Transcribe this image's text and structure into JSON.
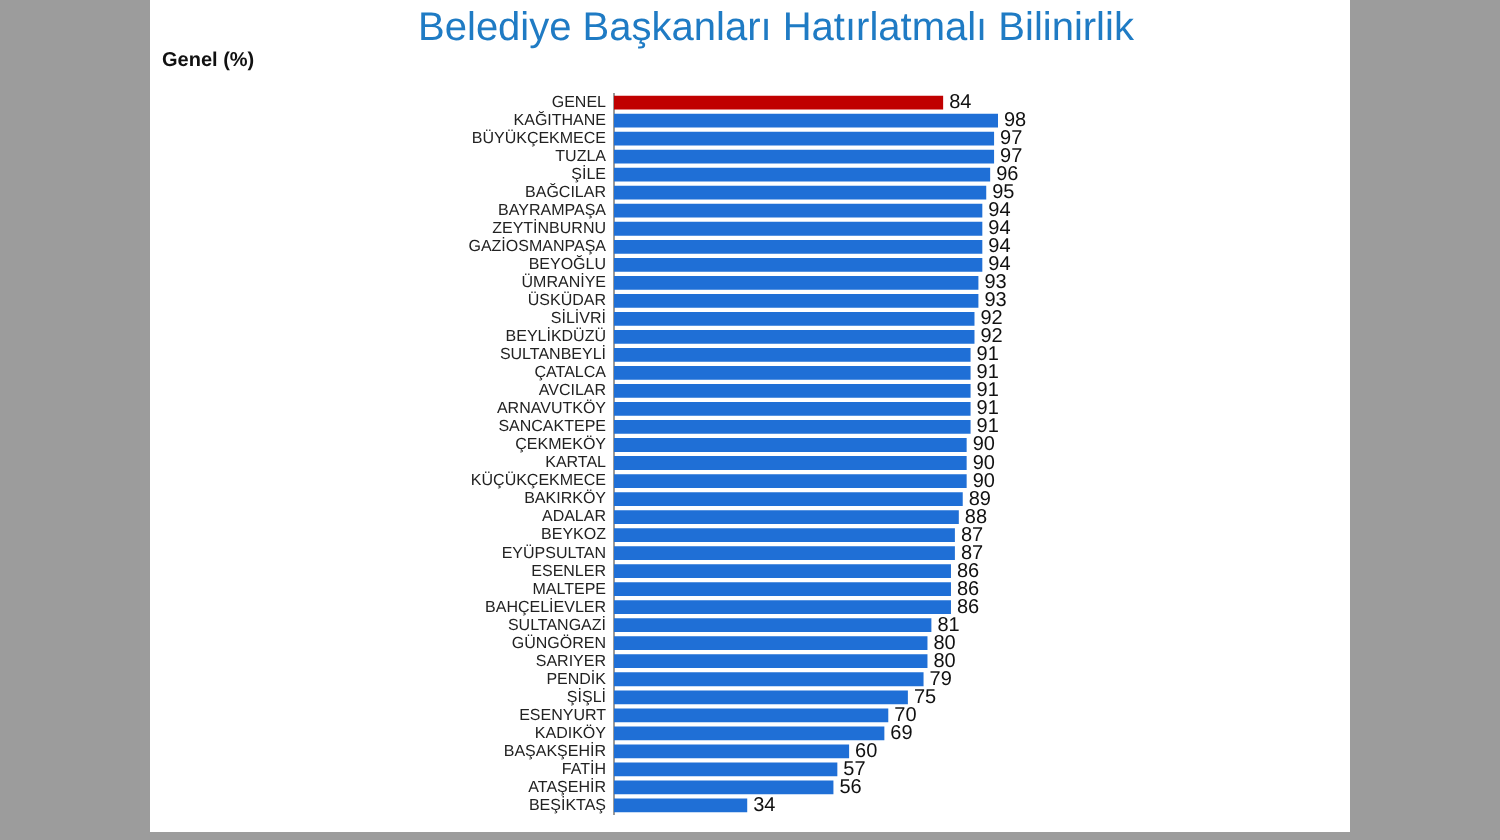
{
  "chart_data": {
    "type": "bar",
    "orientation": "horizontal",
    "title": "Belediye Başkanları Hatırlatmalı Bilinirlik",
    "subtitle": "Genel (%)",
    "categories": [
      "GENEL",
      "KAĞITHANE",
      "BÜYÜKÇEKMECE",
      "TUZLA",
      "ŞİLE",
      "BAĞCILAR",
      "BAYRAMPAŞA",
      "ZEYTİNBURNU",
      "GAZİOSMANPAŞA",
      "BEYOĞLU",
      "ÜMRANİYE",
      "ÜSKÜDAR",
      "SİLİVRİ",
      "BEYLİKDÜZÜ",
      "SULTANBEYLİ",
      "ÇATALCA",
      "AVCILAR",
      "ARNAVUTKÖY",
      "SANCAKTEPE",
      "ÇEKMEKÖY",
      "KARTAL",
      "KÜÇÜKÇEKMECE",
      "BAKIRKÖY",
      "ADALAR",
      "BEYKOZ",
      "EYÜPSULTAN",
      "ESENLER",
      "MALTEPE",
      "BAHÇELİEVLER",
      "SULTANGAZİ",
      "GÜNGÖREN",
      "SARIYER",
      "PENDİK",
      "ŞİŞLİ",
      "ESENYURT",
      "KADIKÖY",
      "BAŞAKŞEHİR",
      "FATİH",
      "ATAŞEHİR",
      "BEŞİKTAŞ"
    ],
    "values": [
      84,
      98,
      97,
      97,
      96,
      95,
      94,
      94,
      94,
      94,
      93,
      93,
      92,
      92,
      91,
      91,
      91,
      91,
      91,
      90,
      90,
      90,
      89,
      88,
      87,
      87,
      86,
      86,
      86,
      81,
      80,
      80,
      79,
      75,
      70,
      69,
      60,
      57,
      56,
      34
    ],
    "colors": [
      "#c00000",
      "#1f6fd6",
      "#1f6fd6",
      "#1f6fd6",
      "#1f6fd6",
      "#1f6fd6",
      "#1f6fd6",
      "#1f6fd6",
      "#1f6fd6",
      "#1f6fd6",
      "#1f6fd6",
      "#1f6fd6",
      "#1f6fd6",
      "#1f6fd6",
      "#1f6fd6",
      "#1f6fd6",
      "#1f6fd6",
      "#1f6fd6",
      "#1f6fd6",
      "#1f6fd6",
      "#1f6fd6",
      "#1f6fd6",
      "#1f6fd6",
      "#1f6fd6",
      "#1f6fd6",
      "#1f6fd6",
      "#1f6fd6",
      "#1f6fd6",
      "#1f6fd6",
      "#1f6fd6",
      "#1f6fd6",
      "#1f6fd6",
      "#1f6fd6",
      "#1f6fd6",
      "#1f6fd6",
      "#1f6fd6",
      "#1f6fd6",
      "#1f6fd6",
      "#1f6fd6",
      "#1f6fd6"
    ],
    "data_labels": true
  }
}
